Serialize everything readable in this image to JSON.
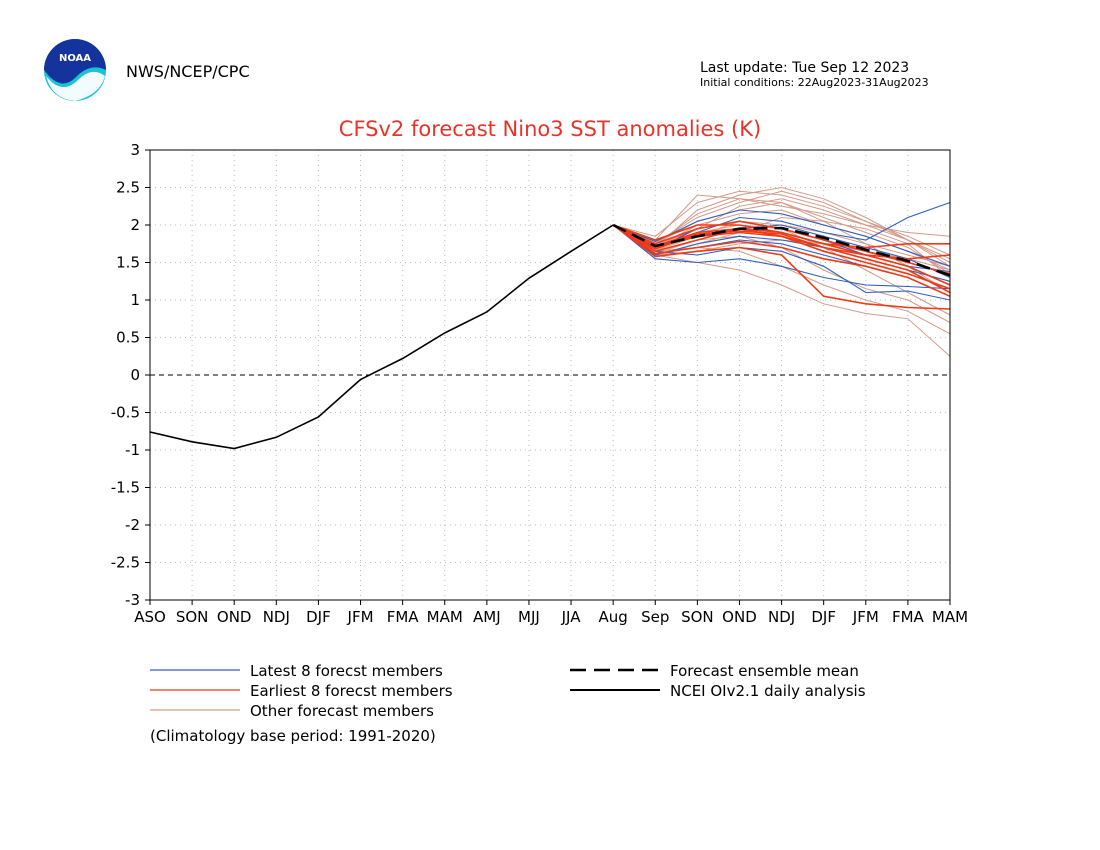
{
  "header": {
    "org": "NWS/NCEP/CPC",
    "logo_text": "NOAA",
    "last_update": "Last update: Tue Sep 12 2023",
    "initial_conditions": "Initial conditions: 22Aug2023-31Aug2023"
  },
  "legend": {
    "latest": "Latest 8 forecst members",
    "earliest": "Earliest 8 forecst members",
    "other": "Other forecast members",
    "mean": "Forecast ensemble mean",
    "analysis": "NCEI OIv2.1 daily analysis",
    "note": "(Climatology base period: 1991-2020)"
  },
  "colors": {
    "latest": "#2f5fc0",
    "earliest": "#ee3a16",
    "other": "#d49a8a",
    "mean": "#000000",
    "analysis": "#000000",
    "title": "#e8332a",
    "grid": "#bbbbbb"
  },
  "chart_data": {
    "type": "line",
    "title": "CFSv2 forecast Nino3 SST anomalies (K)",
    "categories": [
      "ASO",
      "SON",
      "OND",
      "NDJ",
      "DJF",
      "JFM",
      "FMA",
      "MAM",
      "AMJ",
      "MJJ",
      "JJA",
      "Aug",
      "Sep",
      "SON",
      "OND",
      "NDJ",
      "DJF",
      "JFM",
      "FMA",
      "MAM"
    ],
    "ylim": [
      -3,
      3
    ],
    "yticks": [
      3,
      2.5,
      2,
      1.5,
      1,
      0.5,
      0,
      -0.5,
      -1,
      -1.5,
      -2,
      -2.5,
      -3
    ],
    "grid": true,
    "zero_line": true,
    "observed": {
      "name": "NCEI OIv2.1 daily analysis",
      "values": [
        -0.76,
        -0.89,
        -0.98,
        -0.83,
        -0.56,
        -0.06,
        0.22,
        0.56,
        0.84,
        1.29,
        1.65,
        2.0
      ]
    },
    "ensemble_mean": {
      "name": "Forecast ensemble mean",
      "values": [
        2.0,
        1.72,
        1.85,
        1.95,
        1.96,
        1.83,
        1.67,
        1.52,
        1.33
      ]
    },
    "forecast_start_index": 11,
    "latest_members": [
      [
        2.0,
        1.7,
        1.9,
        2.1,
        2.05,
        1.9,
        1.8,
        2.1,
        2.3
      ],
      [
        2.0,
        1.62,
        1.7,
        1.8,
        1.75,
        1.6,
        1.45,
        1.3,
        1.05
      ],
      [
        2.0,
        1.78,
        2.05,
        2.2,
        2.15,
        2.0,
        1.85,
        1.65,
        1.45
      ],
      [
        2.0,
        1.65,
        1.6,
        1.7,
        1.65,
        1.45,
        1.1,
        1.12,
        1.0
      ],
      [
        2.0,
        1.72,
        1.85,
        1.95,
        2.0,
        1.85,
        1.7,
        1.55,
        1.3
      ],
      [
        2.0,
        1.55,
        1.5,
        1.55,
        1.45,
        1.3,
        1.2,
        1.18,
        1.15
      ],
      [
        2.0,
        1.68,
        1.95,
        2.05,
        1.95,
        1.8,
        1.6,
        1.45,
        1.38
      ],
      [
        2.0,
        1.6,
        1.75,
        1.85,
        1.8,
        1.7,
        1.55,
        1.4,
        1.25
      ]
    ],
    "earliest_members": [
      [
        2.0,
        1.75,
        1.95,
        2.05,
        1.95,
        1.8,
        1.65,
        1.5,
        1.35
      ],
      [
        2.0,
        1.8,
        2.0,
        2.0,
        1.9,
        1.75,
        1.6,
        1.45,
        1.2
      ],
      [
        2.0,
        1.58,
        1.65,
        1.7,
        1.6,
        1.05,
        0.95,
        0.9,
        0.88
      ],
      [
        2.0,
        1.7,
        1.85,
        1.9,
        1.85,
        1.7,
        1.55,
        1.4,
        1.1
      ],
      [
        2.0,
        1.65,
        1.8,
        1.95,
        1.9,
        1.75,
        1.7,
        1.75,
        1.75
      ],
      [
        2.0,
        1.72,
        1.9,
        1.95,
        1.85,
        1.65,
        1.5,
        1.35,
        1.15
      ],
      [
        2.0,
        1.62,
        1.7,
        1.78,
        1.7,
        1.55,
        1.45,
        1.3,
        1.05
      ],
      [
        2.0,
        1.68,
        1.88,
        1.92,
        1.88,
        1.7,
        1.6,
        1.55,
        1.6
      ]
    ],
    "other_members": [
      [
        2.0,
        1.85,
        2.3,
        2.45,
        2.4,
        2.25,
        2.05,
        1.85,
        1.6
      ],
      [
        2.0,
        1.7,
        2.2,
        2.4,
        2.5,
        2.35,
        2.1,
        1.8,
        1.45
      ],
      [
        2.0,
        1.6,
        1.5,
        1.4,
        1.2,
        0.95,
        0.82,
        0.75,
        0.25
      ],
      [
        2.0,
        1.75,
        2.05,
        2.2,
        2.3,
        2.1,
        1.9,
        1.7,
        1.35
      ],
      [
        2.0,
        1.65,
        1.7,
        1.65,
        1.45,
        1.2,
        1.0,
        0.85,
        0.55
      ],
      [
        2.0,
        1.8,
        2.4,
        2.35,
        2.25,
        2.15,
        2.0,
        1.9,
        1.85
      ],
      [
        2.0,
        1.72,
        1.95,
        2.25,
        2.35,
        2.2,
        2.0,
        1.8,
        1.5
      ],
      [
        2.0,
        1.58,
        1.75,
        1.9,
        2.1,
        2.05,
        1.95,
        1.75,
        1.3
      ],
      [
        2.0,
        1.68,
        1.9,
        2.0,
        1.95,
        1.7,
        1.4,
        1.1,
        0.8
      ],
      [
        2.0,
        1.62,
        1.8,
        1.85,
        1.7,
        1.4,
        1.15,
        1.0,
        0.7
      ],
      [
        2.0,
        1.76,
        2.1,
        2.3,
        2.45,
        2.3,
        2.05,
        1.8,
        1.55
      ],
      [
        2.0,
        1.7,
        2.0,
        2.15,
        2.2,
        2.0,
        1.85,
        1.65,
        1.4
      ],
      [
        2.0,
        1.66,
        1.85,
        2.05,
        2.0,
        1.9,
        1.75,
        1.6,
        1.45
      ],
      [
        2.0,
        1.74,
        2.15,
        2.35,
        2.3,
        2.05,
        1.75,
        1.45,
        1.1
      ],
      [
        2.0,
        1.6,
        1.65,
        1.75,
        1.8,
        1.75,
        1.65,
        1.55,
        1.4
      ]
    ]
  }
}
